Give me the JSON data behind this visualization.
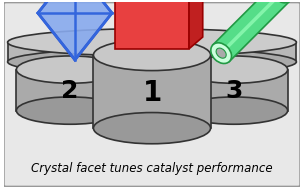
{
  "fig_width": 3.04,
  "fig_height": 1.89,
  "dpi": 100,
  "bg_color": "#ffffff",
  "frame_color": "#cccccc",
  "podium_color": "#c8c8c8",
  "podium_edge_color": "#333333",
  "podium_side_color": "#aaaaaa",
  "podium_bottom_color": "#999999",
  "base_color": "#c0c0c0",
  "base_side_color": "#aaaaaa",
  "base_edge_color": "#333333",
  "caption": "Crystal facet tunes catalyst performance",
  "caption_style": "italic",
  "caption_fontsize": 8.5,
  "cube_front": "#e84040",
  "cube_top": "#f09090",
  "cube_right": "#c02020",
  "cube_edge": "#990000",
  "diamond_fill": "#88aaee",
  "diamond_edge": "#2244cc",
  "diamond_line": "#3366dd",
  "rod_fill": "#55dd88",
  "rod_edge": "#229944",
  "rod_dark": "#228844",
  "rod_highlight": "#99ffbb"
}
